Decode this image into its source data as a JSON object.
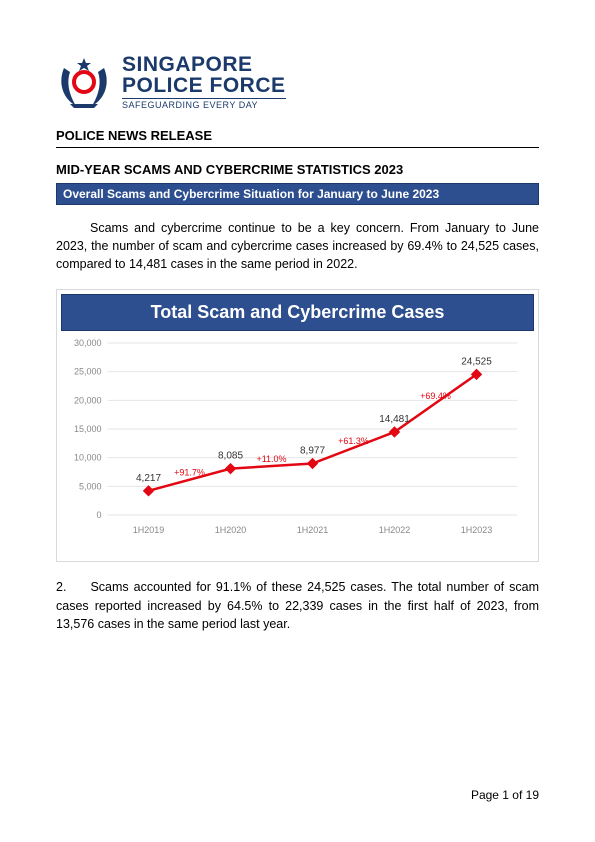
{
  "logo": {
    "line1": "SINGAPORE",
    "line2": "POLICE FORCE",
    "tagline": "SAFEGUARDING EVERY DAY",
    "crest_colors": {
      "laurel": "#1b3a6b",
      "shield": "#e30613",
      "ribbon": "#1b3a6b"
    }
  },
  "release_label": "POLICE NEWS RELEASE",
  "title": "MID-YEAR SCAMS AND CYBERCRIME STATISTICS 2023",
  "banner": "Overall Scams and Cybercrime Situation for January to June 2023",
  "para1": "Scams and cybercrime continue to be a key concern. From January to June 2023, the number of scam and cybercrime cases increased by 69.4% to 24,525 cases, compared to 14,481 cases in the same period in 2022.",
  "para2_num": "2.",
  "para2_body": "Scams accounted for 91.1% of these 24,525 cases. The total number of scam cases reported increased by 64.5% to 22,339 cases in the first half of 2023, from 13,576 cases in the same period last year.",
  "chart": {
    "type": "line",
    "title": "Total Scam and Cybercrime Cases",
    "categories": [
      "1H2019",
      "1H2020",
      "1H2021",
      "1H2022",
      "1H2023"
    ],
    "values": [
      4217,
      8085,
      8977,
      14481,
      24525
    ],
    "value_labels": [
      "4,217",
      "8,085",
      "8,977",
      "14,481",
      "24,525"
    ],
    "pct_changes": [
      "+91.7%",
      "+11.0%",
      "+61.3%",
      "+69.4%"
    ],
    "ylim": [
      0,
      30000
    ],
    "ytick_step": 5000,
    "yticks": [
      "0",
      "5,000",
      "10,000",
      "15,000",
      "20,000",
      "25,000",
      "30,000"
    ],
    "colors": {
      "line": "#e30613",
      "marker": "#e30613",
      "grid": "#e6e6e6",
      "title_bg": "#2d4f8f",
      "title_text": "#ffffff",
      "border": "#d9d9d9",
      "axis_text": "#888888",
      "value_text": "#333333",
      "pct_text": "#e30613",
      "background": "#ffffff"
    },
    "marker_style": "diamond",
    "marker_size": 5,
    "line_width": 2.5,
    "title_fontsize": 18,
    "label_fontsize": 10,
    "tick_fontsize": 9
  },
  "page_number": "Page 1 of 19"
}
